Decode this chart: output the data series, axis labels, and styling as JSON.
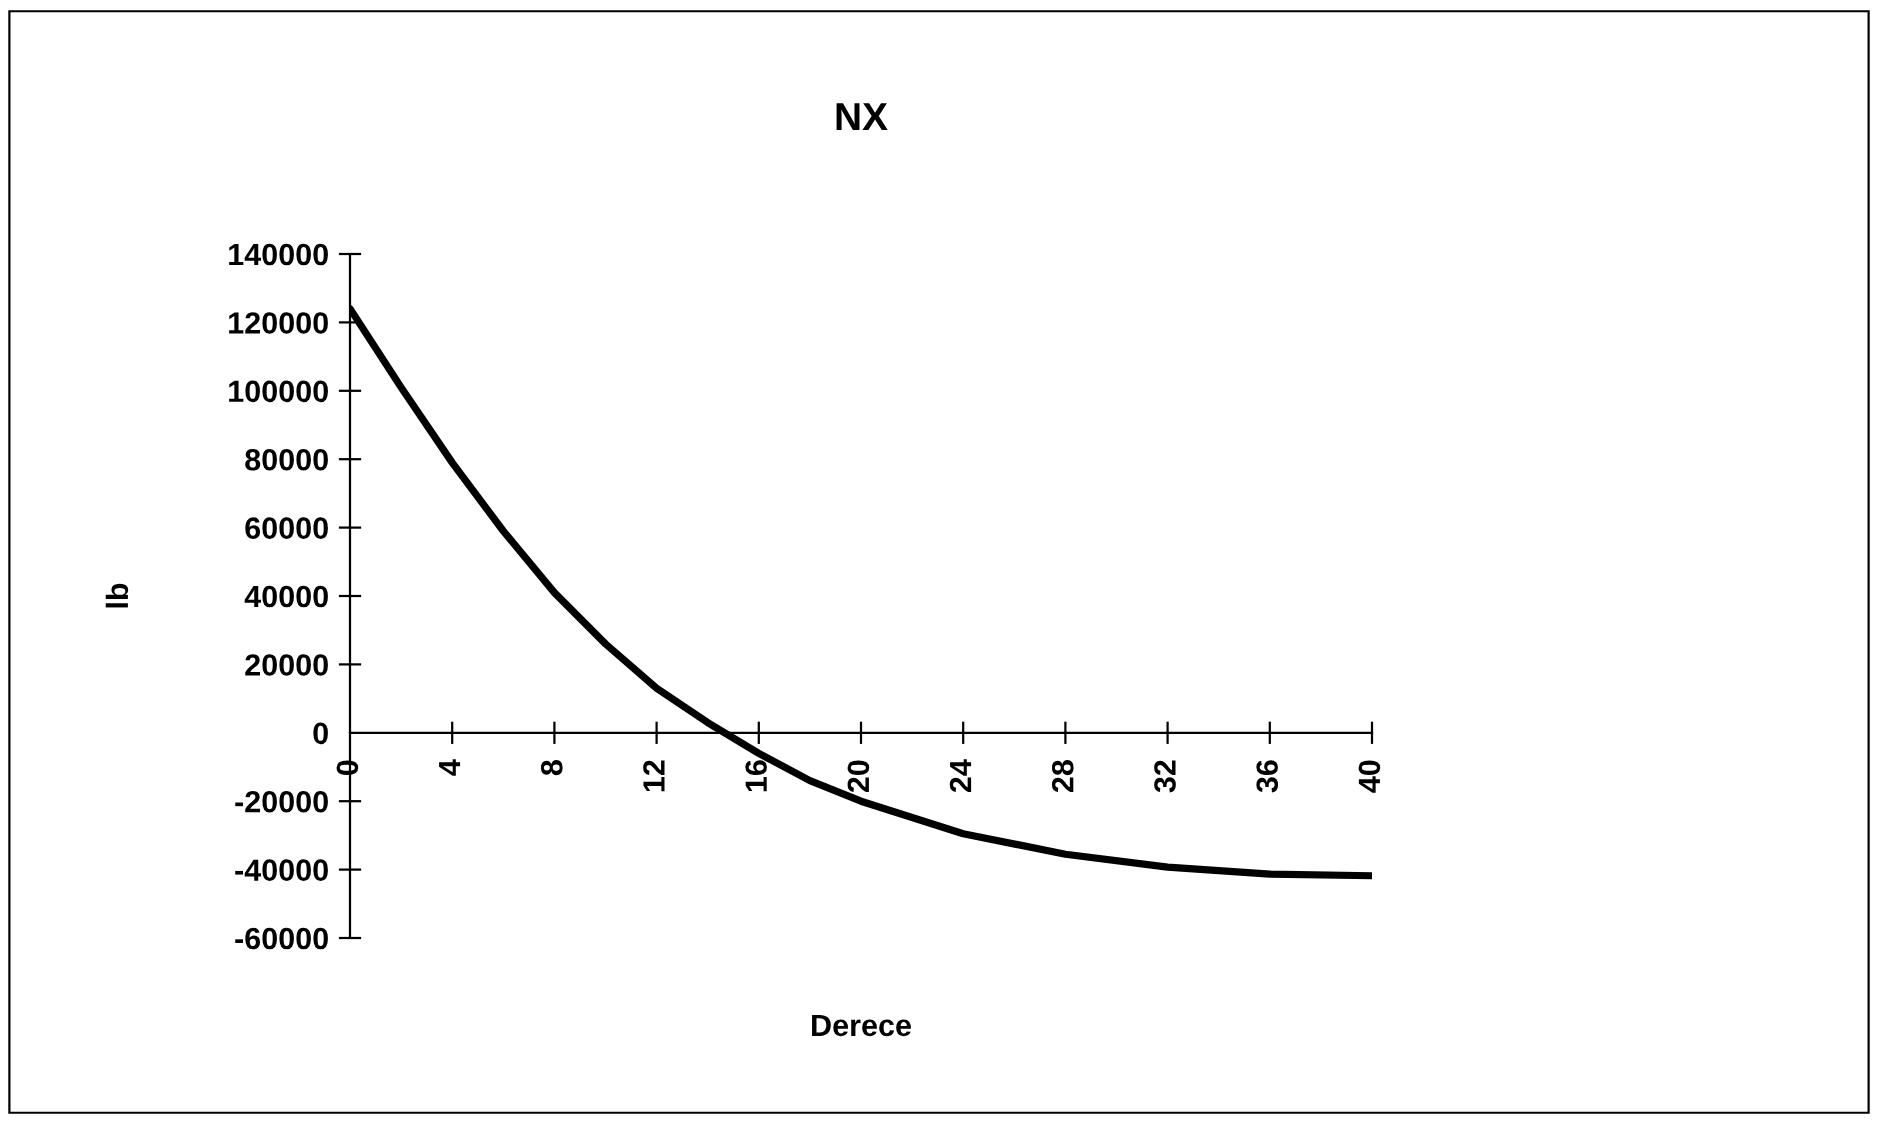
{
  "chart_data": {
    "type": "line",
    "title": "NX",
    "xlabel": "Derece",
    "ylabel": "lb",
    "x": [
      0,
      2,
      4,
      6,
      8,
      10,
      12,
      14,
      16,
      18,
      20,
      24,
      28,
      32,
      36,
      40
    ],
    "series": [
      {
        "color": "#000000",
        "values": [
          124000,
          101000,
          79000,
          59000,
          41000,
          26000,
          13000,
          3000,
          -6000,
          -14000,
          -20000,
          -29500,
          -35500,
          -39300,
          -41300,
          -41800
        ]
      }
    ],
    "xlim": [
      0,
      40
    ],
    "xticks": [
      0,
      4,
      8,
      12,
      16,
      20,
      24,
      28,
      32,
      36,
      40
    ],
    "ylim": [
      -60000,
      140000
    ],
    "yticks": [
      -60000,
      -40000,
      -20000,
      0,
      20000,
      40000,
      60000,
      80000,
      100000,
      120000,
      140000
    ],
    "grid": false,
    "legend": false,
    "marker": "none",
    "line_style": "solid"
  }
}
